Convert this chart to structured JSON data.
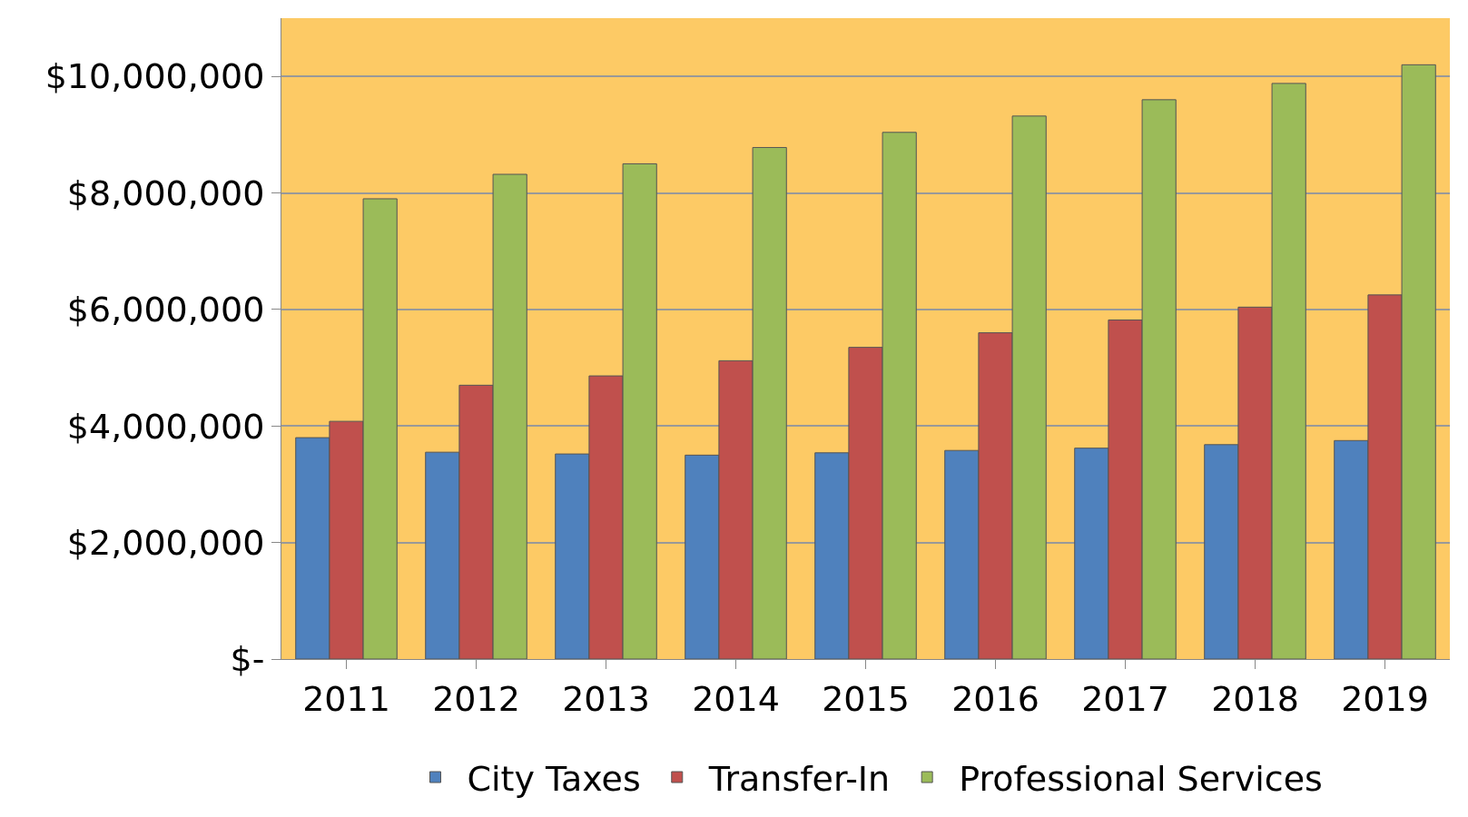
{
  "chart_data": {
    "type": "bar",
    "categories": [
      "2011",
      "2012",
      "2013",
      "2014",
      "2015",
      "2016",
      "2017",
      "2018",
      "2019"
    ],
    "series": [
      {
        "name": "City Taxes",
        "color": "#4f81bd",
        "values": [
          3800000,
          3550000,
          3520000,
          3500000,
          3540000,
          3580000,
          3620000,
          3680000,
          3750000
        ]
      },
      {
        "name": "Transfer-In",
        "color": "#c0504d",
        "values": [
          4080000,
          4700000,
          4860000,
          5120000,
          5350000,
          5600000,
          5820000,
          6040000,
          6250000
        ]
      },
      {
        "name": "Professional Services",
        "color": "#9bbb59",
        "values": [
          7900000,
          8320000,
          8500000,
          8780000,
          9040000,
          9320000,
          9600000,
          9880000,
          10200000
        ]
      }
    ],
    "ylim": [
      0,
      11000000
    ],
    "yticks": [
      {
        "value": 0,
        "label": "$-"
      },
      {
        "value": 2000000,
        "label": "$2,000,000"
      },
      {
        "value": 4000000,
        "label": "$4,000,000"
      },
      {
        "value": 6000000,
        "label": "$6,000,000"
      },
      {
        "value": 8000000,
        "label": "$8,000,000"
      },
      {
        "value": 10000000,
        "label": "$10,000,000"
      }
    ],
    "grid": "y",
    "legend": "bottom"
  }
}
